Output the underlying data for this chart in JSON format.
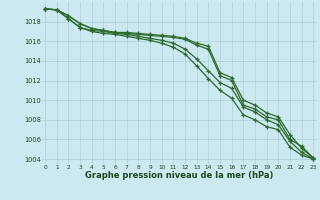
{
  "x": [
    0,
    1,
    2,
    3,
    4,
    5,
    6,
    7,
    8,
    9,
    10,
    11,
    12,
    13,
    14,
    15,
    16,
    17,
    18,
    19,
    20,
    21,
    22,
    23
  ],
  "line1": [
    1019.3,
    1019.2,
    1018.6,
    1017.8,
    1017.3,
    1017.1,
    1016.9,
    1016.8,
    1016.7,
    1016.6,
    1016.5,
    1016.4,
    1016.2,
    1015.6,
    1015.2,
    1012.5,
    1012.0,
    1009.5,
    1009.1,
    1008.3,
    1008.0,
    1006.0,
    1005.3,
    1004.1
  ],
  "line2": [
    1019.3,
    1019.2,
    1018.6,
    1017.8,
    1017.3,
    1017.1,
    1016.9,
    1016.9,
    1016.8,
    1016.7,
    1016.6,
    1016.5,
    1016.3,
    1015.8,
    1015.5,
    1012.8,
    1012.3,
    1010.0,
    1009.5,
    1008.7,
    1008.3,
    1006.5,
    1005.1,
    1004.1
  ],
  "line3": [
    1019.3,
    1019.2,
    1018.3,
    1017.4,
    1017.1,
    1017.0,
    1016.8,
    1016.7,
    1016.5,
    1016.3,
    1016.1,
    1015.8,
    1015.2,
    1014.2,
    1013.0,
    1011.8,
    1011.2,
    1009.3,
    1008.8,
    1008.0,
    1007.5,
    1005.8,
    1004.7,
    1004.0
  ],
  "line4": [
    1019.3,
    1019.2,
    1018.3,
    1017.4,
    1017.0,
    1016.8,
    1016.7,
    1016.5,
    1016.3,
    1016.1,
    1015.8,
    1015.4,
    1014.7,
    1013.5,
    1012.2,
    1011.0,
    1010.2,
    1008.5,
    1008.0,
    1007.3,
    1007.0,
    1005.2,
    1004.4,
    1004.0
  ],
  "ylim": [
    1003.5,
    1020.0
  ],
  "yticks": [
    1004,
    1006,
    1008,
    1010,
    1012,
    1014,
    1016,
    1018
  ],
  "xticks": [
    0,
    1,
    2,
    3,
    4,
    5,
    6,
    7,
    8,
    9,
    10,
    11,
    12,
    13,
    14,
    15,
    16,
    17,
    18,
    19,
    20,
    21,
    22,
    23
  ],
  "line_color": "#2d6a2d",
  "bg_color": "#cce8f0",
  "grid_color": "#aad0dc",
  "xlabel": "Graphe pression niveau de la mer (hPa)",
  "xlabel_color": "#1a4a1a",
  "tick_color": "#1a4a1a",
  "marker": "+",
  "markersize": 3.5,
  "linewidth": 0.9
}
